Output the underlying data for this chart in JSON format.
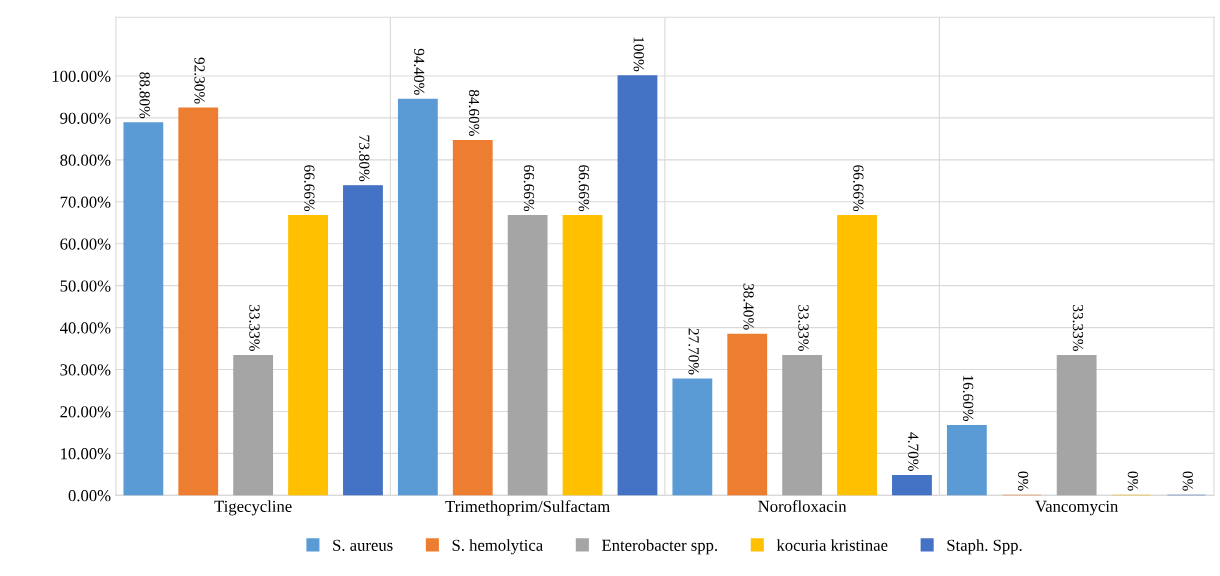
{
  "chart_data": {
    "type": "bar",
    "categories": [
      "Tigecycline",
      "Trimethoprim/Sulfactam",
      "Norofloxacin",
      "Vancomycin"
    ],
    "series": [
      {
        "name": "S. aureus",
        "color": "#5b9bd5",
        "values": [
          88.8,
          94.4,
          27.7,
          16.6
        ],
        "value_labels": [
          "88.80%",
          "94.40%",
          "27.70%",
          "16.60%"
        ]
      },
      {
        "name": "S. hemolytica",
        "color": "#ed7d31",
        "values": [
          92.3,
          84.6,
          38.4,
          0
        ],
        "value_labels": [
          "92.30%",
          "84.60%",
          "38.40%",
          "0%"
        ]
      },
      {
        "name": "Enterobacter spp.",
        "color": "#a5a5a5",
        "values": [
          33.33,
          66.66,
          33.33,
          33.33
        ],
        "value_labels": [
          "33.33%",
          "66.66%",
          "33.33%",
          "33.33%"
        ]
      },
      {
        "name": "kocuria kristinae",
        "color": "#ffc000",
        "values": [
          66.66,
          66.66,
          66.66,
          0
        ],
        "value_labels": [
          "66.66%",
          "66.66%",
          "66.66%",
          "0%"
        ]
      },
      {
        "name": "Staph. Spp.",
        "color": "#4472c4",
        "values": [
          73.8,
          100,
          4.7,
          0
        ],
        "value_labels": [
          "73.80%",
          "100%",
          "4.70%",
          "0%"
        ]
      }
    ],
    "ylim": [
      0,
      114
    ],
    "yticks": [
      {
        "value": 0,
        "label": "0.00%"
      },
      {
        "value": 10,
        "label": "10.00%"
      },
      {
        "value": 20,
        "label": "20.00%"
      },
      {
        "value": 30,
        "label": "30.00%"
      },
      {
        "value": 40,
        "label": "40.00%"
      },
      {
        "value": 50,
        "label": "50.00%"
      },
      {
        "value": 60,
        "label": "60.00%"
      },
      {
        "value": 70,
        "label": "70.00%"
      },
      {
        "value": 80,
        "label": "80.00%"
      },
      {
        "value": 90,
        "label": "90.00%"
      },
      {
        "value": 100,
        "label": "100.00%"
      }
    ],
    "grid": true,
    "legend": "bottom"
  }
}
